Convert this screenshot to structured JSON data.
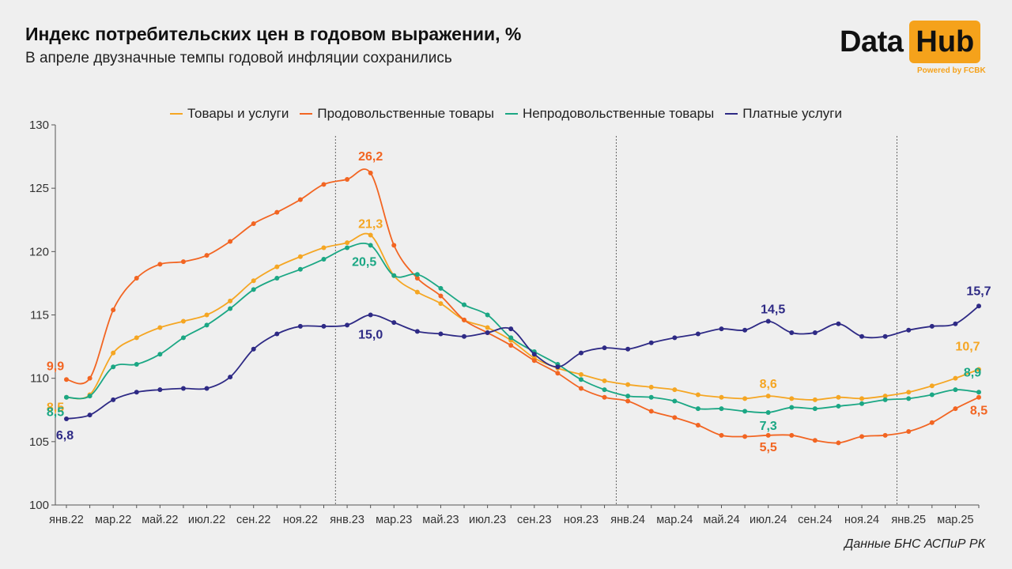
{
  "header": {
    "title": "Индекс потребительских цен в годовом выражении, %",
    "subtitle": "В апреле двузначные темпы годовой инфляции сохранились"
  },
  "logo": {
    "word1": "Data",
    "word2": "Hub",
    "tagline": "Powered by FCBK",
    "accent": "#f5a21b"
  },
  "source": "Данные БНС АСПиР РК",
  "chart_data": {
    "type": "line",
    "x": [
      "янв.22",
      "фев.22",
      "мар.22",
      "апр.22",
      "май.22",
      "июн.22",
      "июл.22",
      "авг.22",
      "сен.22",
      "окт.22",
      "ноя.22",
      "дек.22",
      "янв.23",
      "фев.23",
      "мар.23",
      "апр.23",
      "май.23",
      "июн.23",
      "июл.23",
      "авг.23",
      "сен.23",
      "окт.23",
      "ноя.23",
      "дек.23",
      "янв.24",
      "фев.24",
      "мар.24",
      "апр.24",
      "май.24",
      "июн.24",
      "июл.24",
      "авг.24",
      "сен.24",
      "окт.24",
      "ноя.24",
      "дек.24",
      "янв.25",
      "фев.25",
      "мар.25",
      "апр.25"
    ],
    "xtick_labels": [
      "янв.22",
      "мар.22",
      "май.22",
      "июл.22",
      "сен.22",
      "ноя.22",
      "янв.23",
      "мар.23",
      "май.23",
      "июл.23",
      "сен.23",
      "ноя.23",
      "янв.24",
      "мар.24",
      "май.24",
      "июл.24",
      "сен.24",
      "ноя.24",
      "янв.25",
      "мар.25"
    ],
    "ylim": [
      100,
      130
    ],
    "yticks": [
      100,
      105,
      110,
      115,
      120,
      125,
      130
    ],
    "vlines": [
      "янв.23",
      "янв.24",
      "янв.25"
    ],
    "series": [
      {
        "name": "Товары и услуги",
        "color": "#f5a623",
        "values": [
          108.5,
          108.7,
          112.0,
          113.2,
          114.0,
          114.5,
          115.0,
          116.1,
          117.7,
          118.8,
          119.6,
          120.3,
          120.7,
          121.3,
          118.1,
          116.8,
          115.9,
          114.6,
          114.0,
          113.0,
          111.6,
          110.8,
          110.3,
          109.8,
          109.5,
          109.3,
          109.1,
          108.7,
          108.5,
          108.4,
          108.6,
          108.4,
          108.3,
          108.5,
          108.4,
          108.6,
          108.9,
          109.4,
          110.0,
          110.7
        ],
        "labels": [
          {
            "i": 0,
            "text": "8,5"
          },
          {
            "i": 13,
            "text": "21,3"
          },
          {
            "i": 30,
            "text": "8,6"
          },
          {
            "i": 39,
            "text": "10,7"
          }
        ]
      },
      {
        "name": "Продовольственные товары",
        "color": "#f26522",
        "values": [
          109.9,
          110.0,
          115.4,
          117.9,
          119.0,
          119.2,
          119.7,
          120.8,
          122.2,
          123.1,
          124.1,
          125.3,
          125.7,
          126.2,
          120.5,
          117.9,
          116.5,
          114.6,
          113.6,
          112.6,
          111.4,
          110.4,
          109.2,
          108.5,
          108.2,
          107.4,
          106.9,
          106.3,
          105.5,
          105.4,
          105.5,
          105.5,
          105.1,
          104.9,
          105.4,
          105.5,
          105.8,
          106.5,
          107.6,
          108.5
        ],
        "labels": [
          {
            "i": 0,
            "text": "9,9"
          },
          {
            "i": 13,
            "text": "26,2"
          },
          {
            "i": 30,
            "text": "5,5"
          },
          {
            "i": 39,
            "text": "8,5"
          }
        ]
      },
      {
        "name": "Непродовольственные товары",
        "color": "#1ba784",
        "values": [
          108.5,
          108.6,
          110.9,
          111.1,
          111.9,
          113.2,
          114.2,
          115.5,
          117.0,
          117.9,
          118.6,
          119.4,
          120.3,
          120.5,
          118.1,
          118.2,
          117.1,
          115.8,
          115.0,
          113.2,
          112.1,
          111.1,
          109.9,
          109.1,
          108.6,
          108.5,
          108.2,
          107.6,
          107.6,
          107.4,
          107.3,
          107.7,
          107.6,
          107.8,
          108.0,
          108.3,
          108.4,
          108.7,
          109.1,
          108.9
        ],
        "labels": [
          {
            "i": 0,
            "text": "8,5"
          },
          {
            "i": 13,
            "text": "20,5"
          },
          {
            "i": 30,
            "text": "7,3"
          },
          {
            "i": 39,
            "text": "8,9"
          }
        ]
      },
      {
        "name": "Платные услуги",
        "color": "#2e2a85",
        "values": [
          106.8,
          107.1,
          108.3,
          108.9,
          109.1,
          109.2,
          109.2,
          110.1,
          112.3,
          113.5,
          114.1,
          114.1,
          114.2,
          115.0,
          114.4,
          113.7,
          113.5,
          113.3,
          113.6,
          113.9,
          111.9,
          110.9,
          112.0,
          112.4,
          112.3,
          112.8,
          113.2,
          113.5,
          113.9,
          113.8,
          114.5,
          113.6,
          113.6,
          114.3,
          113.3,
          113.3,
          113.8,
          114.1,
          114.3,
          115.7
        ],
        "labels": [
          {
            "i": 0,
            "text": "6,8"
          },
          {
            "i": 13,
            "text": "15,0"
          },
          {
            "i": 30,
            "text": "14,5"
          },
          {
            "i": 39,
            "text": "15,7"
          }
        ]
      }
    ]
  }
}
